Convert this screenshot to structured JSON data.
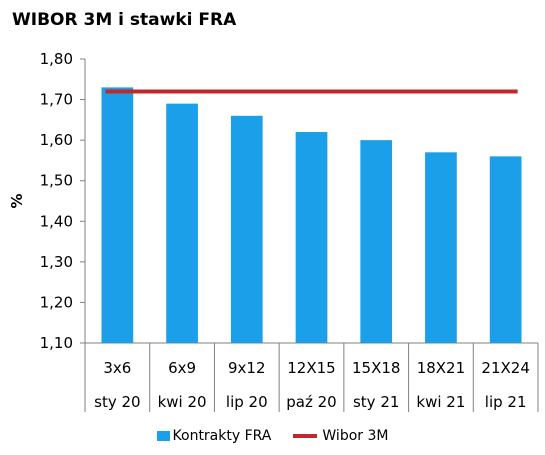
{
  "chart_data": {
    "type": "bar",
    "title": "WIBOR 3M i stawki FRA",
    "xlabel": "",
    "ylabel": "%",
    "ylim": [
      1.1,
      1.8
    ],
    "yticks": [
      "1,10",
      "1,20",
      "1,30",
      "1,40",
      "1,50",
      "1,60",
      "1,70",
      "1,80"
    ],
    "tick_values": [
      1.1,
      1.2,
      1.3,
      1.4,
      1.5,
      1.6,
      1.7,
      1.8
    ],
    "categories": [
      "3x6",
      "6x9",
      "9x12",
      "12X15",
      "15X18",
      "18X21",
      "21X24"
    ],
    "subcategories": [
      "sty 20",
      "kwi 20",
      "lip 20",
      "paź 20",
      "sty 21",
      "kwi 21",
      "lip 21"
    ],
    "series": [
      {
        "name": "Kontrakty FRA",
        "type": "bar",
        "color": "#1a9fe8",
        "values": [
          1.73,
          1.69,
          1.66,
          1.62,
          1.6,
          1.57,
          1.56
        ]
      },
      {
        "name": "Wibor 3M",
        "type": "line",
        "color": "#c0282d",
        "values": [
          1.72,
          1.72,
          1.72,
          1.72,
          1.72,
          1.72,
          1.72
        ]
      }
    ],
    "grid": false,
    "legend": "bottom"
  }
}
